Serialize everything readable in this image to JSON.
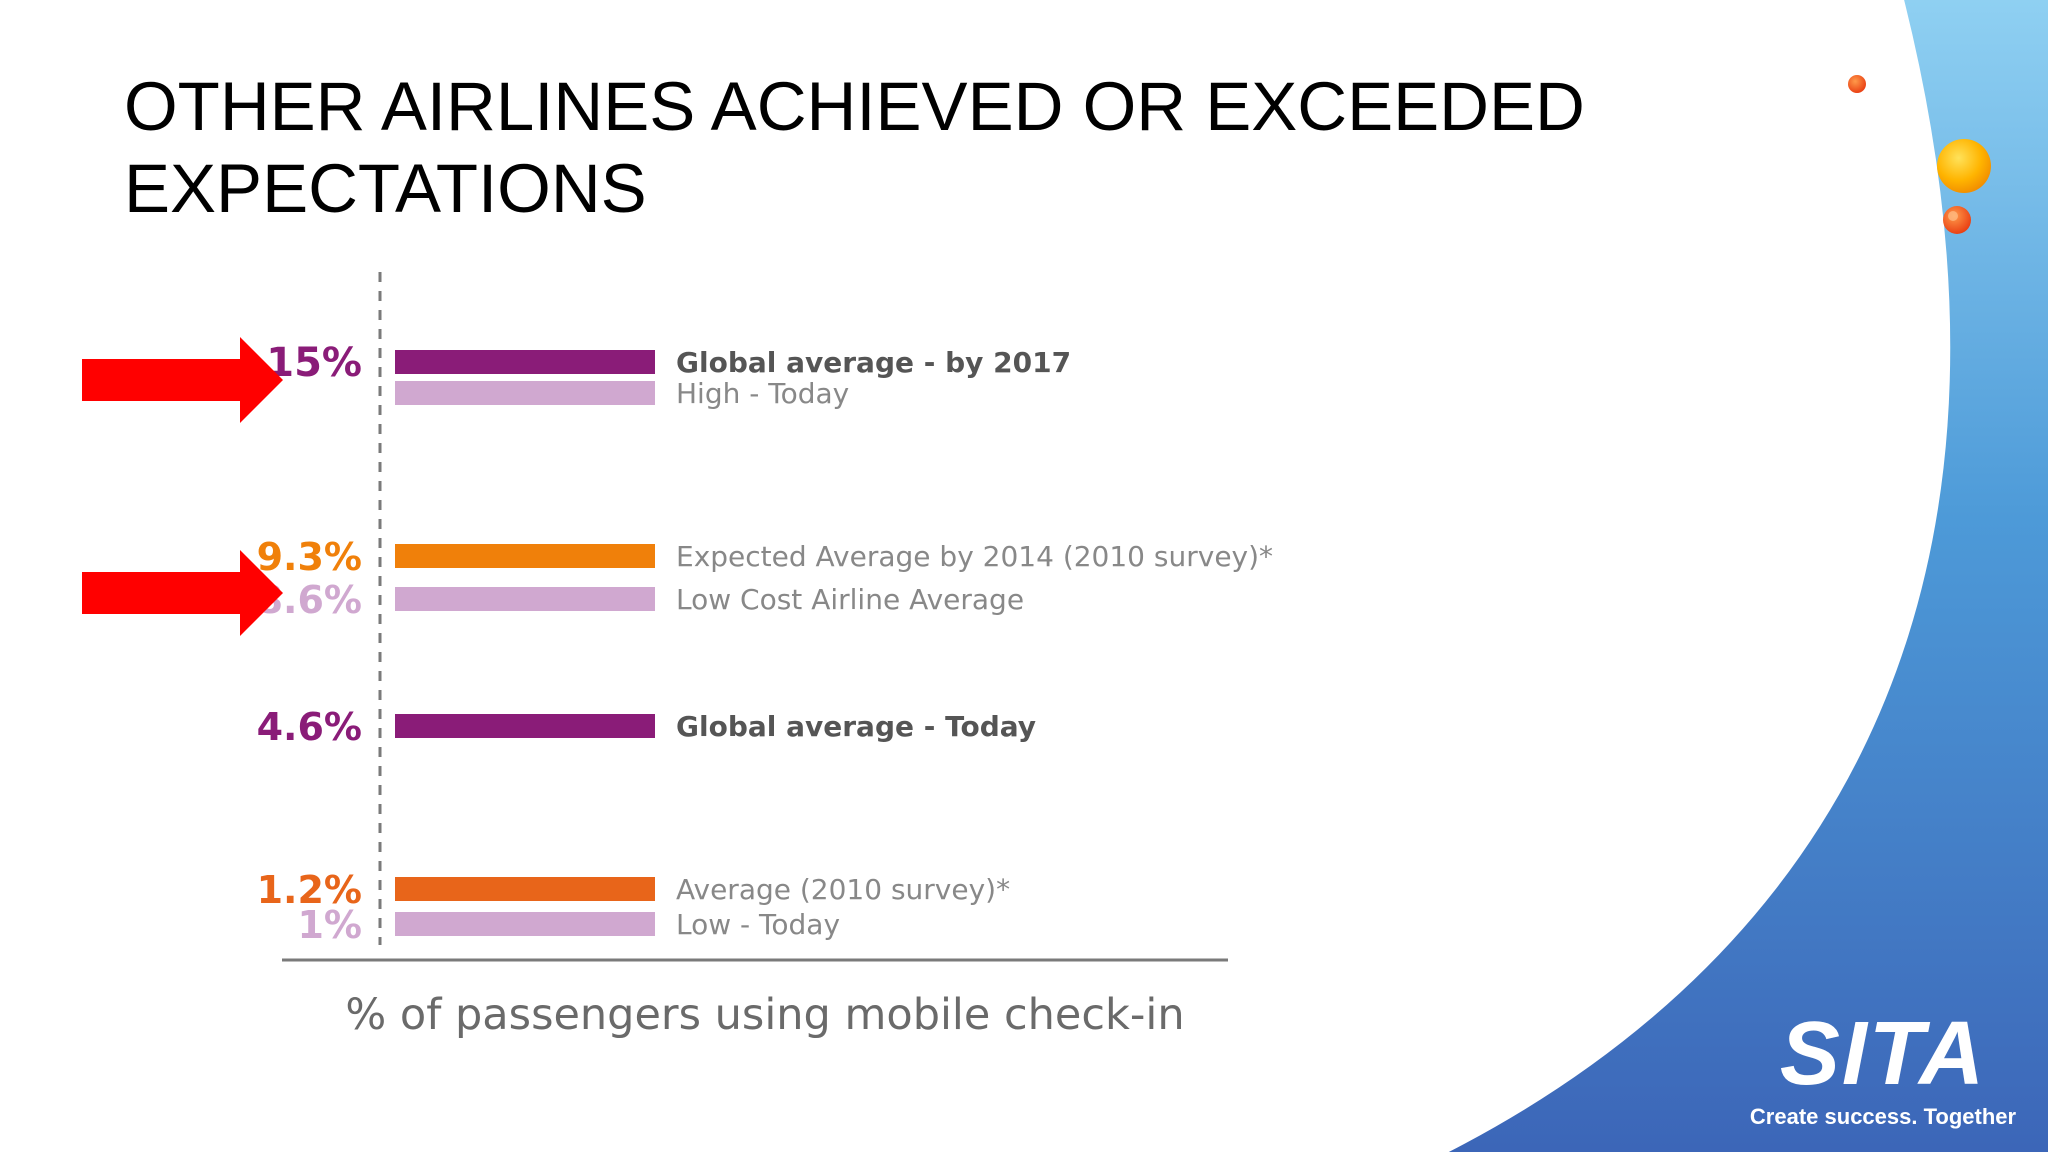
{
  "slide": {
    "title_line1": "OTHER AIRLINES ACHIEVED OR EXCEEDED",
    "title_line2": "EXPECTATIONS"
  },
  "brand": {
    "logo_text": "SITA",
    "tagline": "Create success. Together"
  },
  "colors": {
    "purple": "#8a1c78",
    "light_purple": "#d0a8d0",
    "orange": "#f0800a",
    "dark_orange": "#e8651a",
    "arrow": "#ff0000",
    "label_dark": "#555555",
    "label_light": "#888888",
    "axis": "#7a7a7a"
  },
  "chart_data": {
    "type": "bar",
    "title": "",
    "xlabel": "% of passengers using mobile check-in",
    "ylabel": "",
    "value_labels": [
      "15%",
      "9.3%",
      "8.6%",
      "4.6%",
      "1.2%",
      "1%"
    ],
    "series": [
      {
        "label": "Global average - by 2017",
        "value": 15,
        "display": "15%",
        "color": "purple",
        "label_weight": "bold",
        "highlighted": true
      },
      {
        "label": "High - Today",
        "value": 15,
        "display": "",
        "color": "light_purple",
        "label_weight": "normal",
        "highlighted": false
      },
      {
        "label": "Expected Average by 2014 (2010 survey)*",
        "value": 9.3,
        "display": "9.3%",
        "color": "orange",
        "label_weight": "normal",
        "highlighted": false
      },
      {
        "label": "Low Cost Airline Average",
        "value": 8.6,
        "display": "8.6%",
        "color": "light_purple",
        "label_weight": "normal",
        "highlighted": true
      },
      {
        "label": "Global average - Today",
        "value": 4.6,
        "display": "4.6%",
        "color": "purple",
        "label_weight": "bold",
        "highlighted": false
      },
      {
        "label": "Average (2010 survey)*",
        "value": 1.2,
        "display": "1.2%",
        "color": "dark_orange",
        "label_weight": "normal",
        "highlighted": false
      },
      {
        "label": "Low - Today",
        "value": 1,
        "display": "1%",
        "color": "light_purple",
        "label_weight": "normal",
        "highlighted": false
      }
    ]
  }
}
